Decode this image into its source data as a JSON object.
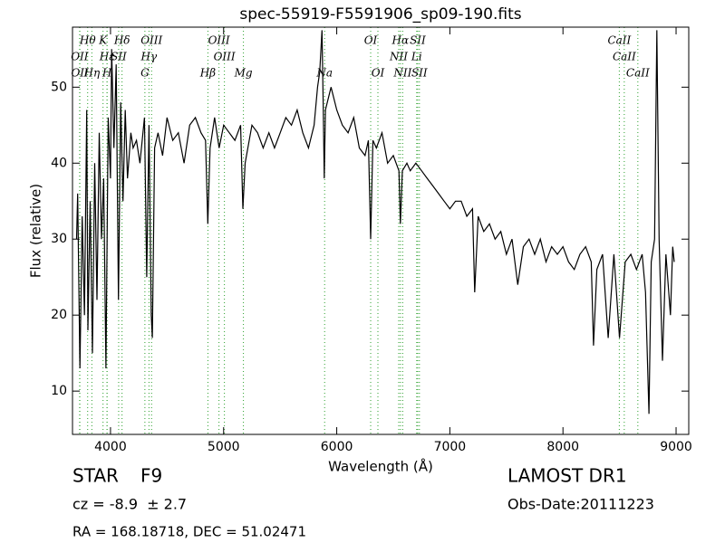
{
  "chart_data": {
    "type": "line",
    "title": "spec-55919-F5591906_sp09-190.fits",
    "x_label": "Wavelength (Å)",
    "y_label": "Flux (relative)",
    "color": "#000000",
    "line_color": "#2ca02c",
    "xlim": [
      3664,
      9112
    ],
    "ylim": [
      4.3,
      57.9
    ],
    "xticks": [
      4000,
      5000,
      6000,
      7000,
      8000,
      9000
    ],
    "yticks": [
      10,
      20,
      30,
      40,
      50
    ],
    "grid": false,
    "x": [
      3700,
      3710,
      3730,
      3750,
      3770,
      3790,
      3800,
      3820,
      3840,
      3860,
      3880,
      3900,
      3920,
      3940,
      3960,
      3980,
      4000,
      4010,
      4030,
      4050,
      4070,
      4090,
      4110,
      4130,
      4150,
      4180,
      4200,
      4230,
      4260,
      4300,
      4320,
      4340,
      4360,
      4370,
      4390,
      4420,
      4460,
      4500,
      4550,
      4600,
      4650,
      4700,
      4750,
      4800,
      4840,
      4860,
      4880,
      4920,
      4960,
      5000,
      5050,
      5100,
      5150,
      5170,
      5190,
      5250,
      5300,
      5350,
      5400,
      5450,
      5500,
      5550,
      5600,
      5650,
      5700,
      5750,
      5800,
      5830,
      5850,
      5870,
      5880,
      5890,
      5900,
      5950,
      6000,
      6050,
      6100,
      6150,
      6200,
      6250,
      6280,
      6300,
      6320,
      6350,
      6400,
      6450,
      6500,
      6550,
      6563,
      6580,
      6620,
      6650,
      6700,
      6750,
      6800,
      6850,
      6900,
      6950,
      7000,
      7050,
      7100,
      7150,
      7200,
      7220,
      7250,
      7300,
      7350,
      7400,
      7450,
      7500,
      7550,
      7600,
      7650,
      7700,
      7750,
      7800,
      7850,
      7900,
      7950,
      8000,
      8050,
      8100,
      8150,
      8200,
      8250,
      8270,
      8300,
      8350,
      8400,
      8450,
      8500,
      8550,
      8600,
      8650,
      8700,
      8730,
      8760,
      8780,
      8810,
      8830,
      8850,
      8880,
      8910,
      8950,
      8970,
      8984
    ],
    "values": [
      30,
      36,
      13,
      33,
      20,
      47,
      18,
      35,
      15,
      40,
      22,
      44,
      30,
      38,
      13,
      46,
      38,
      55,
      42,
      53,
      22,
      48,
      35,
      47,
      38,
      44,
      42,
      43,
      40,
      46,
      25,
      45,
      20,
      17,
      42,
      44,
      41,
      46,
      43,
      44,
      40,
      45,
      46,
      44,
      43,
      32,
      42,
      46,
      42,
      45,
      44,
      43,
      45,
      34,
      40,
      45,
      44,
      42,
      44,
      42,
      44,
      46,
      45,
      47,
      44,
      42,
      45,
      50,
      52,
      57.5,
      48,
      38,
      47,
      50,
      47,
      45,
      44,
      46,
      42,
      41,
      43,
      30,
      43,
      42,
      44,
      40,
      41,
      39,
      32,
      39,
      40,
      39,
      40,
      39,
      38,
      37,
      36,
      35,
      34,
      35,
      35,
      33,
      34,
      23,
      33,
      31,
      32,
      30,
      31,
      28,
      30,
      24,
      29,
      30,
      28,
      30,
      27,
      29,
      28,
      29,
      27,
      26,
      28,
      29,
      27,
      16,
      26,
      28,
      17,
      28,
      17,
      27,
      28,
      26,
      28,
      23,
      7,
      27,
      30,
      57.5,
      30,
      14,
      28,
      20,
      29,
      27
    ],
    "line_labels": [
      [
        {
          "label": "Hθ",
          "wavelength": 3798
        },
        {
          "label": "K",
          "wavelength": 3934
        },
        {
          "label": "Hδ",
          "wavelength": 4102
        },
        {
          "label": "OIII",
          "wavelength": 4363
        },
        {
          "label": "OIII",
          "wavelength": 4959
        },
        {
          "label": "OI",
          "wavelength": 6300
        },
        {
          "label": "Hα",
          "wavelength": 6563
        },
        {
          "label": "SII",
          "wavelength": 6716
        },
        {
          "label": "CaII",
          "wavelength": 8498
        }
      ],
      [
        {
          "label": "OII",
          "wavelength": 3727
        },
        {
          "label": "Hε",
          "wavelength": 3970
        },
        {
          "label": "SII",
          "wavelength": 4072
        },
        {
          "label": "Hγ",
          "wavelength": 4340
        },
        {
          "label": "OIII",
          "wavelength": 5007
        },
        {
          "label": "NII",
          "wavelength": 6548
        },
        {
          "label": "Li",
          "wavelength": 6707
        },
        {
          "label": "CaII",
          "wavelength": 8542
        }
      ],
      [
        {
          "label": "OII",
          "wavelength": 3729
        },
        {
          "label": "Hη",
          "wavelength": 3835
        },
        {
          "label": "H",
          "wavelength": 3969
        },
        {
          "label": "G",
          "wavelength": 4304
        },
        {
          "label": "Hβ",
          "wavelength": 4861
        },
        {
          "label": "Mg",
          "wavelength": 5175
        },
        {
          "label": "Na",
          "wavelength": 5893
        },
        {
          "label": "OI",
          "wavelength": 6364
        },
        {
          "label": "NII",
          "wavelength": 6583
        },
        {
          "label": "SII",
          "wavelength": 6731
        },
        {
          "label": "CaII",
          "wavelength": 8662
        }
      ]
    ],
    "annotations": [
      "STAR",
      "F9",
      "LAMOST DR1",
      "cz = -8.9  ± 2.7",
      "Obs-Date:20111223",
      "RA = 168.18718, DEC = 51.02471"
    ]
  }
}
